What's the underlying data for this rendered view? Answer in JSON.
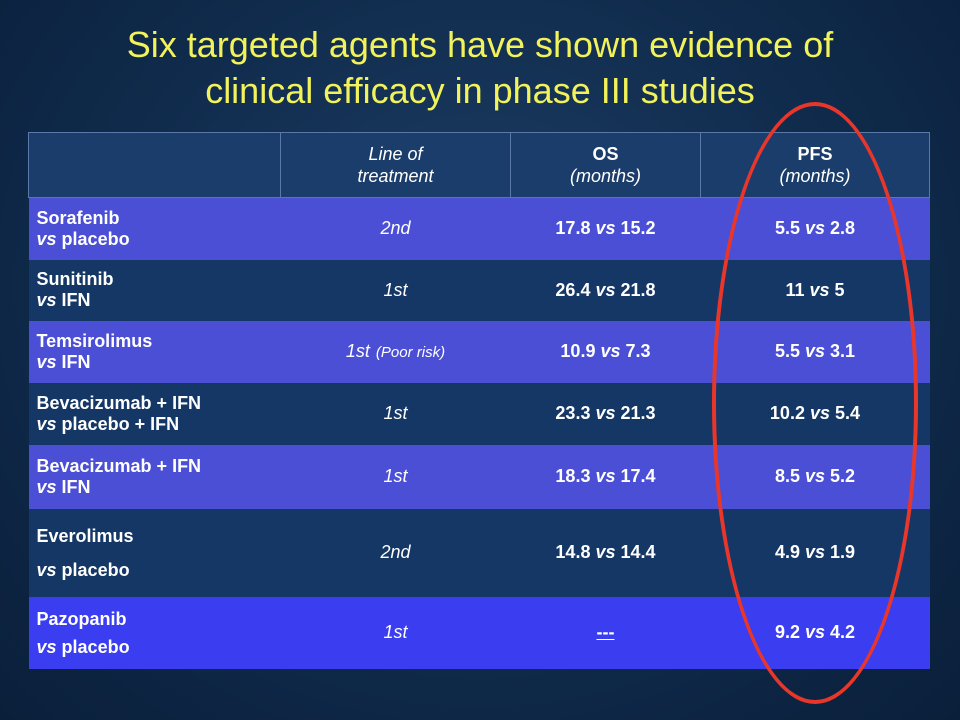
{
  "title": {
    "line1": "Six targeted agents have shown evidence of",
    "line2": "clinical efficacy in phase III studies"
  },
  "table": {
    "headers": {
      "agent": "",
      "line_1": "Line of",
      "line_2": "treatment",
      "os_1": "OS",
      "os_2": "(months)",
      "pfs_1": "PFS",
      "pfs_2": "(months)"
    },
    "rows": [
      {
        "agent": "Sorafenib",
        "comparator": "placebo",
        "line": "2nd",
        "note": "",
        "os_a": "17.8",
        "os_b": "15.2",
        "pfs_a": "5.5",
        "pfs_b": "2.8"
      },
      {
        "agent": "Sunitinib",
        "comparator": "IFN",
        "line": "1st",
        "note": "",
        "os_a": "26.4",
        "os_b": "21.8",
        "pfs_a": "11",
        "pfs_b": "5"
      },
      {
        "agent": "Temsirolimus",
        "comparator": "IFN",
        "line": "1st",
        "note": "(Poor risk)",
        "os_a": "10.9",
        "os_b": "7.3",
        "pfs_a": "5.5",
        "pfs_b": "3.1"
      },
      {
        "agent": "Bevacizumab + IFN",
        "comparator": "placebo + IFN",
        "line": "1st",
        "note": "",
        "os_a": "23.3",
        "os_b": "21.3",
        "pfs_a": "10.2",
        "pfs_b": "5.4"
      },
      {
        "agent": "Bevacizumab + IFN",
        "comparator": "IFN",
        "line": "1st",
        "note": "",
        "os_a": "18.3",
        "os_b": "17.4",
        "pfs_a": "8.5",
        "pfs_b": "5.2"
      },
      {
        "agent": "Everolimus",
        "comparator": "placebo",
        "line": "2nd",
        "note": "",
        "os_a": "14.8",
        "os_b": "14.4",
        "pfs_a": "4.9",
        "pfs_b": "1.9"
      },
      {
        "agent": "Pazopanib",
        "comparator": "placebo",
        "line": "1st",
        "note": "",
        "os_dash": "---",
        "pfs_a": "9.2",
        "pfs_b": "4.2"
      }
    ],
    "vs_word": "vs"
  }
}
